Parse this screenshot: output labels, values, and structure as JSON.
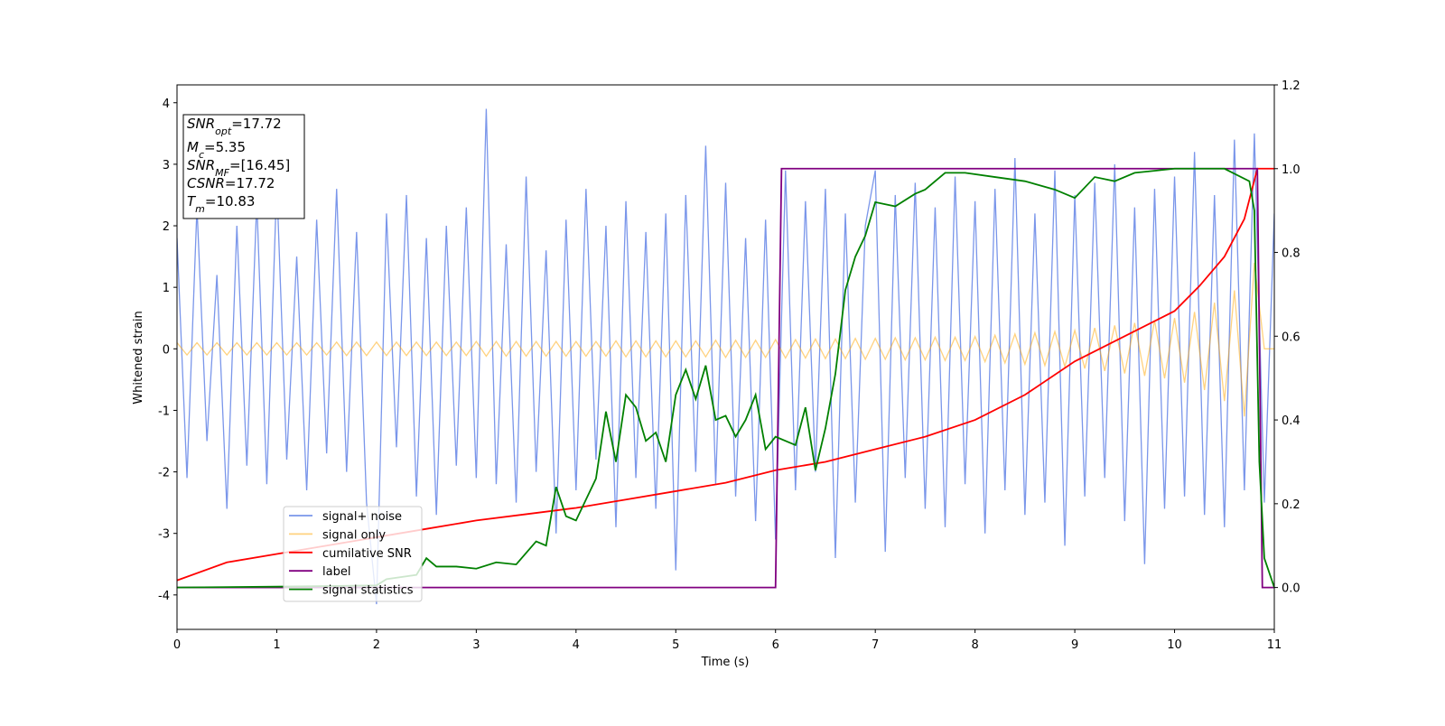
{
  "chart_data": {
    "type": "line",
    "xlabel": "Time (s)",
    "ylabel": "Whitened strain",
    "xlim": [
      0,
      11
    ],
    "ylim": [
      -4.56,
      4.29
    ],
    "y2lim": [
      -0.1,
      1.2
    ],
    "xticks": [
      0,
      1,
      2,
      3,
      4,
      5,
      6,
      7,
      8,
      9,
      10,
      11
    ],
    "yticks": [
      -4,
      -3,
      -2,
      -1,
      0,
      1,
      2,
      3,
      4
    ],
    "y2ticks": [
      {
        "value": 0,
        "label": "0.0"
      },
      0.2,
      0.4,
      0.6,
      0.8,
      {
        "value": 1,
        "label": "1.0"
      },
      1.2
    ],
    "legend_loc": "lower left",
    "annotation": [
      {
        "main": "SNR",
        "sub": "opt",
        "rest": "=17.72"
      },
      {
        "main": "M",
        "sub": "c",
        "rest": "=5.35"
      },
      {
        "main": "SNR",
        "sub": "MF",
        "rest": "=[16.45]"
      },
      {
        "main": "CSNR",
        "sub": null,
        "rest": "=17.72"
      },
      {
        "main": "T",
        "sub": "m",
        "rest": "=10.83"
      }
    ],
    "x": [
      0,
      0.1,
      0.2,
      0.3,
      0.4,
      0.5,
      0.6,
      0.7,
      0.8,
      0.9,
      1,
      1.1,
      1.2,
      1.3,
      1.4,
      1.5,
      1.6,
      1.7,
      1.8,
      1.9,
      2,
      2.1,
      2.2,
      2.3,
      2.4,
      2.5,
      2.6,
      2.7,
      2.8,
      2.9,
      3,
      3.1,
      3.2,
      3.3,
      3.4,
      3.5,
      3.6,
      3.7,
      3.8,
      3.9,
      4,
      4.1,
      4.2,
      4.3,
      4.4,
      4.5,
      4.6,
      4.7,
      4.8,
      4.9,
      5,
      5.1,
      5.2,
      5.3,
      5.4,
      5.5,
      5.6,
      5.7,
      5.8,
      5.9,
      6,
      6.1,
      6.2,
      6.3,
      6.4,
      6.5,
      6.6,
      6.7,
      6.8,
      6.9,
      7,
      7.1,
      7.2,
      7.3,
      7.4,
      7.5,
      7.6,
      7.7,
      7.8,
      7.9,
      8,
      8.1,
      8.2,
      8.3,
      8.4,
      8.5,
      8.6,
      8.7,
      8.8,
      8.9,
      9,
      9.1,
      9.2,
      9.3,
      9.4,
      9.5,
      9.6,
      9.7,
      9.8,
      9.9,
      10,
      10.1,
      10.2,
      10.3,
      10.4,
      10.5,
      10.6,
      10.7,
      10.8,
      10.9,
      11
    ],
    "series": [
      {
        "name": "signal+ noise",
        "color": "#4169e1",
        "alpha": 0.7,
        "values": [
          1.8,
          -2.1,
          2.3,
          -1.5,
          1.2,
          -2.6,
          2.0,
          -1.9,
          2.4,
          -2.2,
          2.7,
          -1.8,
          1.5,
          -2.3,
          2.1,
          -1.7,
          2.6,
          -2.0,
          1.9,
          -2.5,
          -4.15,
          2.2,
          -1.6,
          2.5,
          -2.4,
          1.8,
          -2.7,
          2.0,
          -1.9,
          2.3,
          -2.1,
          3.9,
          -2.2,
          1.7,
          -2.5,
          2.8,
          -2.0,
          1.6,
          -3.0,
          2.1,
          -2.3,
          2.6,
          -1.8,
          2.0,
          -2.9,
          2.4,
          -2.1,
          1.9,
          -2.6,
          2.2,
          -3.6,
          2.5,
          -2.0,
          3.3,
          -2.2,
          2.7,
          -2.4,
          1.8,
          -2.8,
          2.1,
          -3.1,
          2.9,
          -2.3,
          2.4,
          -2.0,
          2.6,
          -3.4,
          2.2,
          -2.5,
          2.0,
          2.9,
          -3.3,
          2.5,
          -2.1,
          2.7,
          -2.6,
          2.3,
          -2.9,
          2.8,
          -2.2,
          2.4,
          -3.0,
          2.6,
          -2.3,
          3.1,
          -2.7,
          2.2,
          -2.5,
          2.9,
          -3.2,
          2.5,
          -2.4,
          2.7,
          -2.1,
          3.0,
          -2.8,
          2.3,
          -3.5,
          2.6,
          -2.6,
          2.8,
          -2.4,
          3.2,
          -2.7,
          2.5,
          -2.9,
          3.4,
          -2.3,
          3.5,
          -2.5,
          2.2
        ]
      },
      {
        "name": "signal only",
        "color": "#ffa500",
        "alpha": 0.5,
        "values": [
          0.1,
          -0.1,
          0.1,
          -0.1,
          0.1,
          -0.1,
          0.1,
          -0.1,
          0.1,
          -0.1,
          0.1,
          -0.1,
          0.1,
          -0.1,
          0.1,
          -0.1,
          0.11,
          -0.11,
          0.11,
          -0.11,
          0.11,
          -0.11,
          0.11,
          -0.11,
          0.11,
          -0.11,
          0.11,
          -0.11,
          0.11,
          -0.11,
          0.12,
          -0.12,
          0.12,
          -0.12,
          0.12,
          -0.12,
          0.12,
          -0.12,
          0.12,
          -0.12,
          0.12,
          -0.12,
          0.12,
          -0.12,
          0.13,
          -0.13,
          0.13,
          -0.13,
          0.13,
          -0.13,
          0.13,
          -0.13,
          0.13,
          -0.13,
          0.14,
          -0.14,
          0.14,
          -0.14,
          0.14,
          -0.14,
          0.15,
          -0.15,
          0.15,
          -0.15,
          0.16,
          -0.16,
          0.16,
          -0.16,
          0.17,
          -0.17,
          0.17,
          -0.17,
          0.18,
          -0.18,
          0.18,
          -0.18,
          0.19,
          -0.19,
          0.19,
          -0.19,
          0.2,
          -0.21,
          0.22,
          -0.23,
          0.24,
          -0.25,
          0.26,
          -0.27,
          0.28,
          -0.29,
          0.3,
          -0.32,
          0.34,
          -0.36,
          0.38,
          -0.4,
          0.42,
          -0.44,
          0.46,
          -0.48,
          0.5,
          -0.55,
          0.6,
          -0.67,
          0.75,
          -0.85,
          0.95,
          -1.1,
          1.4,
          0,
          0
        ]
      },
      {
        "name": "cumilative SNR",
        "color": "#ff0000",
        "axis": "y2",
        "x": [
          0,
          0.5,
          1,
          1.5,
          2,
          2.5,
          3,
          3.5,
          4,
          4.5,
          5,
          5.5,
          6,
          6.5,
          7,
          7.5,
          8,
          8.5,
          9,
          9.5,
          10,
          10.25,
          10.5,
          10.7,
          10.83,
          11
        ],
        "values": [
          0.017,
          0.06,
          0.08,
          0.1,
          0.12,
          0.14,
          0.16,
          0.175,
          0.19,
          0.21,
          0.23,
          0.25,
          0.28,
          0.3,
          0.33,
          0.36,
          0.4,
          0.46,
          0.54,
          0.6,
          0.66,
          0.72,
          0.79,
          0.88,
          1.0,
          1.0
        ]
      },
      {
        "name": "label",
        "color": "#800080",
        "axis": "y2",
        "x": [
          0,
          6.0,
          6.06,
          10.83,
          10.88,
          11
        ],
        "values": [
          0,
          0,
          1,
          1,
          0,
          0
        ]
      },
      {
        "name": "signal statistics",
        "color": "#008000",
        "axis": "y2",
        "x": [
          0,
          1,
          2,
          2.1,
          2.4,
          2.5,
          2.6,
          2.8,
          3.0,
          3.2,
          3.4,
          3.6,
          3.7,
          3.8,
          3.9,
          4.0,
          4.2,
          4.3,
          4.4,
          4.5,
          4.6,
          4.7,
          4.8,
          4.9,
          5.0,
          5.1,
          5.2,
          5.3,
          5.4,
          5.5,
          5.6,
          5.7,
          5.8,
          5.9,
          6.0,
          6.2,
          6.3,
          6.4,
          6.5,
          6.6,
          6.7,
          6.8,
          6.9,
          7.0,
          7.2,
          7.4,
          7.5,
          7.7,
          7.9,
          8.2,
          8.5,
          8.8,
          9.0,
          9.2,
          9.4,
          9.6,
          10.0,
          10.5,
          10.75,
          10.8,
          10.85,
          10.9,
          11.0
        ],
        "values": [
          0,
          0.002,
          0.005,
          0.02,
          0.03,
          0.07,
          0.05,
          0.05,
          0.045,
          0.06,
          0.055,
          0.11,
          0.1,
          0.24,
          0.17,
          0.16,
          0.26,
          0.42,
          0.3,
          0.46,
          0.43,
          0.35,
          0.37,
          0.3,
          0.46,
          0.52,
          0.45,
          0.53,
          0.4,
          0.41,
          0.36,
          0.4,
          0.46,
          0.33,
          0.36,
          0.34,
          0.43,
          0.28,
          0.38,
          0.51,
          0.71,
          0.79,
          0.84,
          0.92,
          0.91,
          0.94,
          0.95,
          0.99,
          0.99,
          0.98,
          0.97,
          0.95,
          0.93,
          0.98,
          0.97,
          0.99,
          1.0,
          1.0,
          0.97,
          0.9,
          0.3,
          0.07,
          0.0
        ]
      }
    ]
  }
}
